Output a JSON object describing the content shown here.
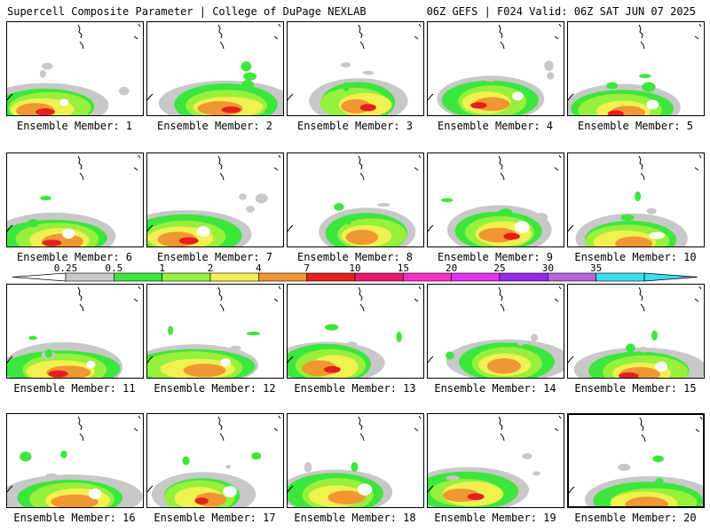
{
  "title_left": "Supercell Composite Parameter | College of DuPage NEXLAB",
  "title_right": "06Z GEFS | F024 Valid: 06Z SAT JUN 07 2025",
  "member_label_prefix": "Ensemble Member: ",
  "members": [
    1,
    2,
    3,
    4,
    5,
    6,
    7,
    8,
    9,
    10,
    11,
    12,
    13,
    14,
    15,
    16,
    17,
    18,
    19,
    20
  ],
  "highlighted_member": 20,
  "colorbar": {
    "ticks": [
      "0.25",
      "0.5",
      "1",
      "2",
      "4",
      "7",
      "10",
      "15",
      "20",
      "25",
      "30",
      "35"
    ],
    "colors": [
      "#c8c8c8",
      "#3ce63c",
      "#96f03c",
      "#f0f050",
      "#f09632",
      "#e61e1e",
      "#e6196e",
      "#f532c8",
      "#e632f0",
      "#9628e6",
      "#b464dc",
      "#3cdcf0"
    ]
  },
  "colors": {
    "border": "#000000",
    "background": "#ffffff"
  }
}
